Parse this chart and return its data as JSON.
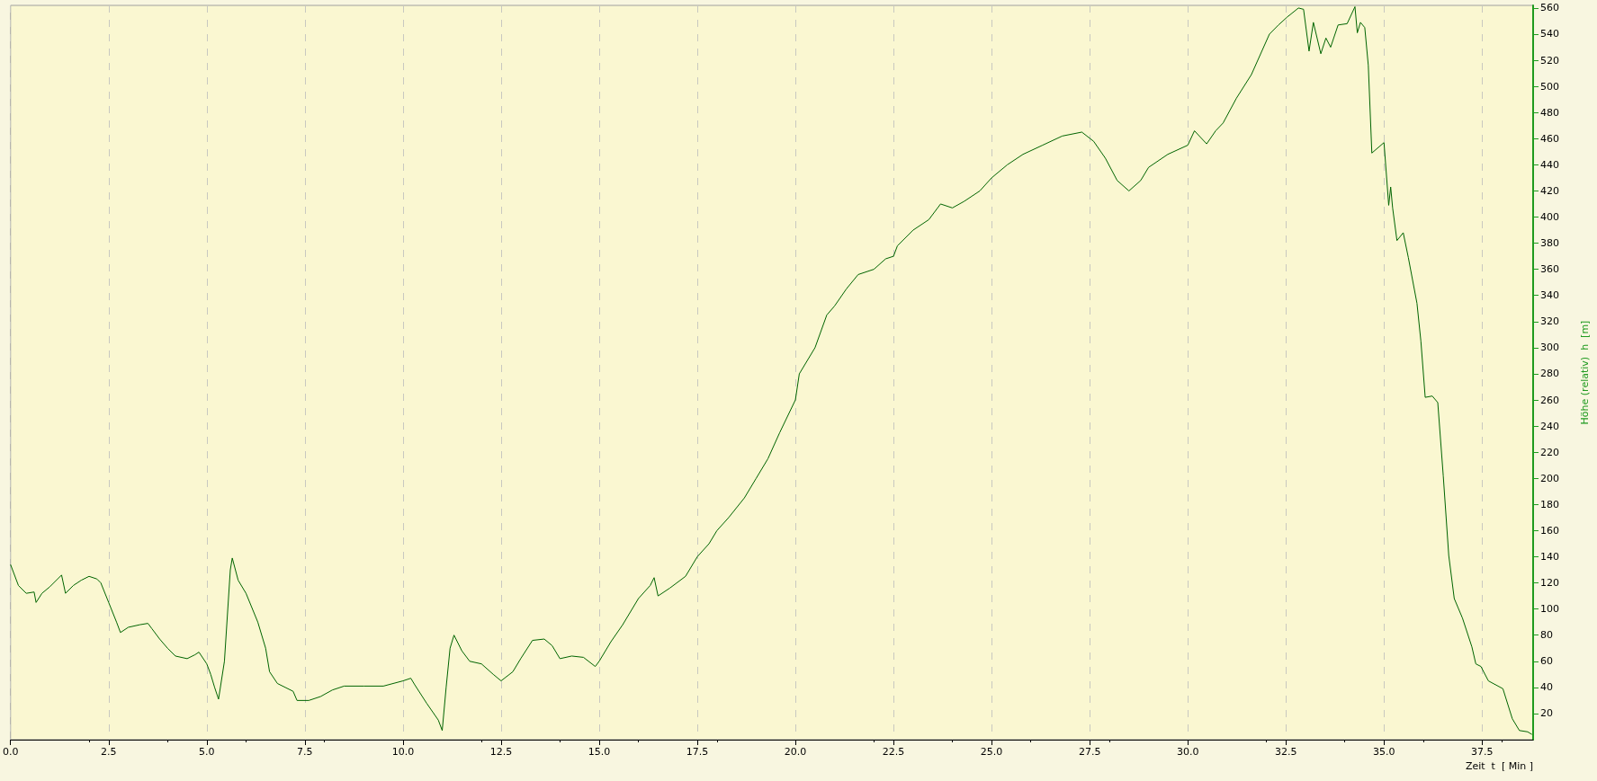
{
  "chart_data": {
    "type": "line",
    "xlabel": "Zeit  t  [ Min ]",
    "ylabel": "Höhe (relativ)  h  [m]",
    "x": [
      0,
      0.2,
      0.4,
      0.6,
      0.65,
      0.8,
      1.0,
      1.3,
      1.4,
      1.6,
      1.8,
      2.0,
      2.2,
      2.3,
      2.5,
      2.7,
      2.8,
      3.0,
      3.3,
      3.5,
      3.6,
      3.8,
      4.0,
      4.2,
      4.5,
      4.7,
      4.8,
      5.0,
      5.1,
      5.2,
      5.3,
      5.45,
      5.6,
      5.65,
      5.8,
      6.0,
      6.3,
      6.5,
      6.6,
      6.8,
      7.0,
      7.2,
      7.3,
      7.6,
      7.9,
      8.2,
      8.5,
      9.0,
      9.5,
      10.0,
      10.2,
      10.3,
      10.6,
      10.9,
      11.0,
      11.1,
      11.2,
      11.3,
      11.5,
      11.7,
      12.0,
      12.3,
      12.5,
      12.8,
      13.0,
      13.3,
      13.6,
      13.8,
      14.0,
      14.3,
      14.6,
      14.9,
      15.0,
      15.3,
      15.6,
      16.0,
      16.3,
      16.4,
      16.5,
      16.8,
      17.2,
      17.5,
      17.8,
      18.0,
      18.3,
      18.7,
      19.0,
      19.3,
      19.6,
      20.0,
      20.1,
      20.5,
      20.8,
      21.0,
      21.3,
      21.6,
      22.0,
      22.3,
      22.5,
      22.6,
      23.0,
      23.4,
      23.7,
      24.0,
      24.3,
      24.7,
      25.0,
      25.4,
      25.8,
      26.3,
      26.8,
      27.3,
      27.6,
      27.9,
      28.2,
      28.5,
      28.8,
      29.0,
      29.49,
      30.0,
      30.17,
      30.48,
      30.71,
      30.9,
      31.24,
      31.62,
      32.08,
      32.31,
      32.53,
      32.82,
      32.95,
      33.09,
      33.2,
      33.39,
      33.52,
      33.64,
      33.83,
      34.06,
      34.26,
      34.32,
      34.4,
      34.51,
      34.6,
      34.69,
      35.0,
      35.12,
      35.17,
      35.22,
      35.33,
      35.49,
      35.62,
      35.84,
      35.94,
      36.05,
      36.23,
      36.37,
      36.51,
      36.65,
      36.79,
      37.0,
      37.24,
      37.34,
      37.47,
      37.66,
      38.03,
      38.27,
      38.45,
      38.66,
      38.77
    ],
    "values": [
      134,
      118,
      112,
      113,
      105,
      112,
      117,
      126,
      112,
      118,
      122,
      125,
      123,
      120,
      105,
      90,
      82,
      86,
      88,
      89,
      85,
      77,
      70,
      64,
      62,
      65,
      67,
      58,
      50,
      40,
      31,
      60,
      130,
      139,
      122,
      112,
      90,
      70,
      52,
      43,
      40,
      37,
      30,
      30,
      33,
      38,
      41,
      41,
      41,
      45,
      47,
      42,
      28,
      15,
      7,
      40,
      70,
      80,
      68,
      60,
      58,
      50,
      45,
      52,
      62,
      76,
      77,
      72,
      62,
      64,
      63,
      56,
      60,
      75,
      88,
      108,
      118,
      124,
      110,
      116,
      125,
      140,
      150,
      160,
      170,
      185,
      200,
      215,
      235,
      260,
      280,
      300,
      325,
      332,
      345,
      356,
      360,
      368,
      370,
      378,
      390,
      398,
      410,
      407,
      412,
      420,
      430,
      440,
      448,
      455,
      462,
      465,
      458,
      445,
      428,
      420,
      428,
      438,
      448,
      455,
      466,
      456,
      466,
      472,
      491,
      509,
      540,
      547,
      553,
      560,
      559,
      527,
      549,
      525,
      537,
      530,
      547,
      548,
      561,
      541,
      549,
      545,
      516,
      449,
      457,
      409,
      423,
      407,
      382,
      388,
      369,
      334,
      305,
      262,
      263,
      258,
      202,
      141,
      108,
      93,
      71,
      58,
      56,
      45,
      39,
      16,
      7,
      6,
      4
    ],
    "color": "#006400",
    "xlim": [
      0,
      38.8
    ],
    "ylim": [
      0,
      562
    ],
    "xticks": [
      {
        "value": 0,
        "label": "0.0"
      },
      2.5,
      {
        "value": 5,
        "label": "5.0"
      },
      7.5,
      {
        "value": 10,
        "label": "10.0"
      },
      12.5,
      {
        "value": 15,
        "label": "15.0"
      },
      17.5,
      {
        "value": 20,
        "label": "20.0"
      },
      22.5,
      {
        "value": 25,
        "label": "25.0"
      },
      27.5,
      {
        "value": 30,
        "label": "30.0"
      },
      32.5,
      {
        "value": 35,
        "label": "35.0"
      },
      37.5
    ],
    "yticks": [
      20,
      40,
      60,
      80,
      100,
      120,
      140,
      160,
      180,
      200,
      220,
      240,
      260,
      280,
      300,
      320,
      340,
      360,
      380,
      400,
      420,
      440,
      460,
      480,
      500,
      520,
      540,
      560
    ],
    "grid": "x",
    "marker": "none",
    "line_style": "solid"
  }
}
